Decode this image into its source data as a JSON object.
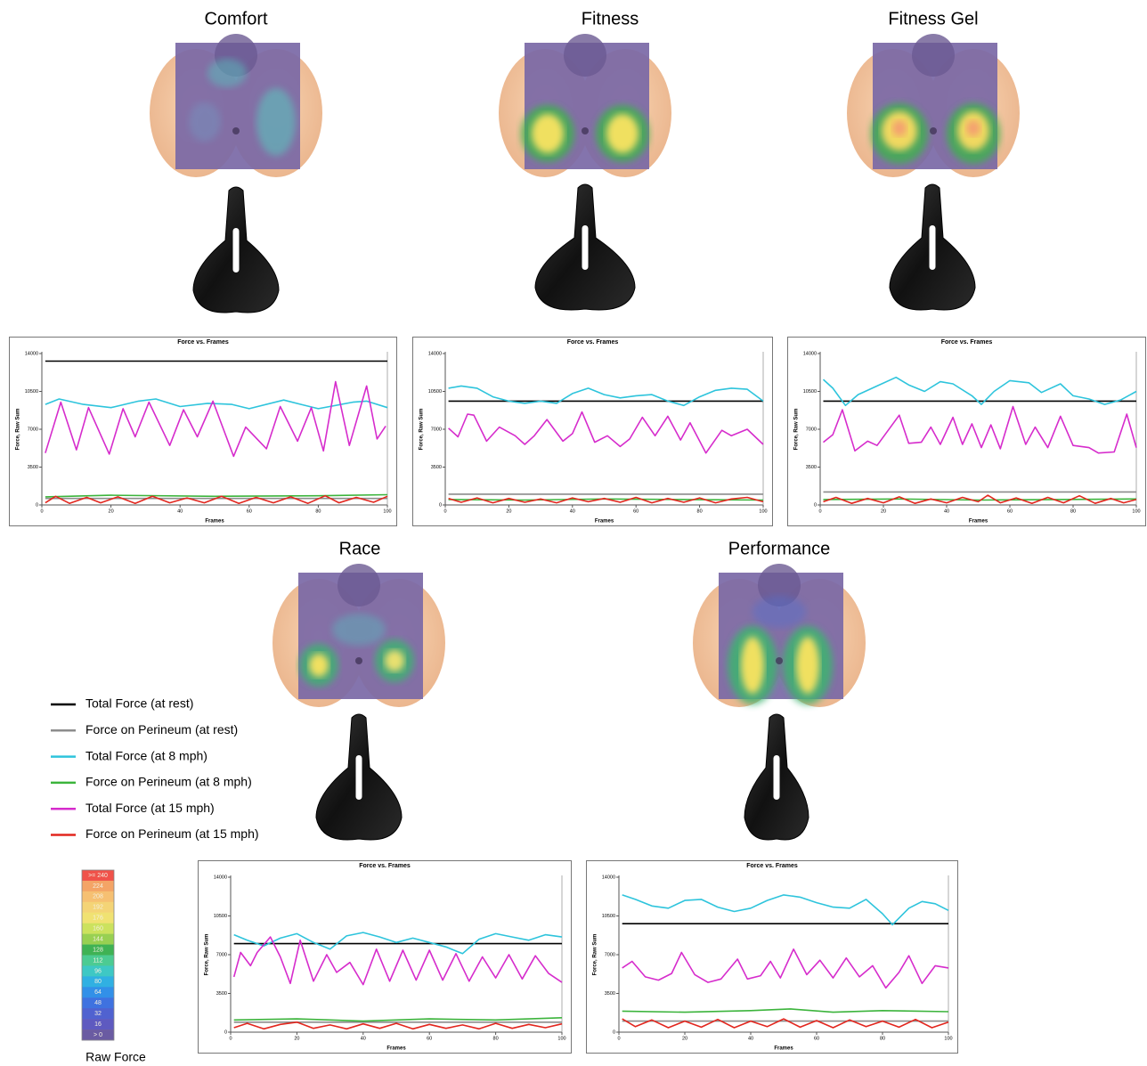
{
  "chart_data": [
    {
      "type": "line",
      "panel_title": "Comfort",
      "title": "Force vs. Frames",
      "xlabel": "Frames",
      "ylabel": "Force, Raw Sum",
      "xlim": [
        0,
        100
      ],
      "ylim": [
        0,
        14000
      ],
      "xticks": [
        0,
        20,
        40,
        60,
        80,
        100
      ],
      "yticks": [
        0,
        3500,
        7000,
        10500,
        14000
      ],
      "series": [
        {
          "x": [
            1,
            100
          ],
          "values": [
            13300,
            13300
          ]
        },
        {
          "x": [
            1,
            100
          ],
          "values": [
            600,
            600
          ]
        },
        {
          "x": [
            1,
            5,
            12,
            20,
            28,
            33,
            40,
            48,
            55,
            60,
            70,
            75,
            80,
            90,
            94,
            100
          ],
          "values": [
            9300,
            9800,
            9300,
            9000,
            9600,
            9800,
            9100,
            9400,
            9300,
            8900,
            9700,
            9300,
            8900,
            9500,
            9600,
            9000
          ]
        },
        {
          "x": [
            1,
            20,
            50,
            80,
            100
          ],
          "values": [
            750,
            900,
            800,
            850,
            950
          ]
        },
        {
          "x": [
            1,
            5.5,
            10,
            13.5,
            19.5,
            23.5,
            27,
            31,
            37,
            41,
            45,
            49.5,
            55.5,
            59,
            65,
            69,
            74,
            78,
            81.5,
            85,
            89,
            94,
            97,
            99.5
          ],
          "values": [
            4800,
            9500,
            5100,
            9000,
            4700,
            8900,
            6300,
            9500,
            5500,
            8800,
            6300,
            9600,
            4500,
            7200,
            5200,
            9100,
            5900,
            9000,
            5000,
            11400,
            5500,
            11000,
            6100,
            7300
          ]
        },
        {
          "x": [
            1,
            4,
            8,
            13,
            17,
            22,
            27,
            32,
            37,
            42,
            47,
            52,
            57,
            62,
            67,
            72,
            77,
            82,
            86,
            91,
            96,
            100
          ],
          "values": [
            200,
            800,
            150,
            700,
            200,
            750,
            150,
            800,
            200,
            650,
            200,
            800,
            150,
            700,
            200,
            750,
            150,
            850,
            200,
            700,
            250,
            800
          ]
        }
      ]
    },
    {
      "type": "line",
      "panel_title": "Fitness",
      "title": "Force vs. Frames",
      "xlabel": "Frames",
      "ylabel": "Force, Raw Sum",
      "xlim": [
        0,
        100
      ],
      "ylim": [
        0,
        14000
      ],
      "xticks": [
        0,
        20,
        40,
        60,
        80,
        100
      ],
      "yticks": [
        0,
        3500,
        7000,
        10500,
        14000
      ],
      "series": [
        {
          "x": [
            1,
            100
          ],
          "values": [
            9600,
            9600
          ]
        },
        {
          "x": [
            1,
            100
          ],
          "values": [
            1000,
            1000
          ]
        },
        {
          "x": [
            1,
            5,
            10,
            15,
            20,
            25,
            30,
            35,
            40,
            45,
            50,
            55,
            60,
            65,
            70,
            75,
            80,
            85,
            90,
            95,
            100
          ],
          "values": [
            10800,
            11000,
            10800,
            10000,
            9600,
            9400,
            9600,
            9400,
            10300,
            10800,
            10200,
            9900,
            10100,
            10200,
            9600,
            9200,
            10000,
            10600,
            10800,
            10700,
            9600
          ]
        },
        {
          "x": [
            1,
            25,
            50,
            75,
            100
          ],
          "values": [
            500,
            450,
            550,
            500,
            450
          ]
        },
        {
          "x": [
            1,
            4,
            7,
            9,
            13,
            17,
            22,
            25,
            28,
            32,
            37,
            40,
            43,
            47,
            51,
            55,
            58,
            62,
            66,
            70,
            74,
            77,
            82,
            87,
            90,
            95,
            100
          ],
          "values": [
            7100,
            6300,
            8400,
            8300,
            5900,
            7200,
            6400,
            5600,
            6400,
            7900,
            5900,
            6600,
            8600,
            5800,
            6400,
            5400,
            6100,
            8100,
            6400,
            8200,
            6000,
            7600,
            4800,
            6900,
            6400,
            7000,
            5600
          ]
        },
        {
          "x": [
            1,
            5,
            10,
            15,
            20,
            25,
            30,
            35,
            40,
            45,
            50,
            55,
            60,
            65,
            70,
            75,
            80,
            85,
            90,
            95,
            100
          ],
          "values": [
            600,
            250,
            650,
            200,
            600,
            250,
            550,
            200,
            650,
            300,
            600,
            250,
            700,
            200,
            600,
            250,
            650,
            200,
            550,
            700,
            300
          ]
        }
      ]
    },
    {
      "type": "line",
      "panel_title": "Fitness Gel",
      "title": "Force vs. Frames",
      "xlabel": "Frames",
      "ylabel": "Force, Raw Sum",
      "xlim": [
        0,
        100
      ],
      "ylim": [
        0,
        14000
      ],
      "xticks": [
        0,
        20,
        40,
        60,
        80,
        100
      ],
      "yticks": [
        0,
        3500,
        7000,
        10500,
        14000
      ],
      "series": [
        {
          "x": [
            1,
            100
          ],
          "values": [
            9600,
            9600
          ]
        },
        {
          "x": [
            1,
            100
          ],
          "values": [
            1200,
            1200
          ]
        },
        {
          "x": [
            1,
            4,
            8,
            12,
            18,
            24,
            28,
            33,
            38,
            42,
            48,
            51,
            55,
            60,
            66,
            70,
            76,
            80,
            85,
            90,
            95,
            100
          ],
          "values": [
            11600,
            10800,
            9200,
            10200,
            11000,
            11800,
            11100,
            10500,
            11400,
            11200,
            10100,
            9300,
            10500,
            11500,
            11300,
            10400,
            11200,
            10100,
            9800,
            9300,
            9700,
            10500
          ]
        },
        {
          "x": [
            1,
            25,
            50,
            75,
            100
          ],
          "values": [
            500,
            550,
            450,
            500,
            550
          ]
        },
        {
          "x": [
            1,
            4,
            7,
            11,
            15,
            18,
            22,
            25,
            28,
            32,
            35,
            38,
            42,
            45,
            48,
            51,
            54,
            57,
            61,
            65,
            68,
            72,
            76,
            80,
            85,
            88,
            93,
            97,
            100
          ],
          "values": [
            5800,
            6500,
            8800,
            5000,
            5900,
            5500,
            7100,
            8300,
            5700,
            5800,
            7200,
            5600,
            8100,
            5600,
            7500,
            5300,
            7400,
            5200,
            9100,
            5600,
            7200,
            5300,
            8200,
            5500,
            5300,
            4800,
            4900,
            8400,
            5300
          ]
        },
        {
          "x": [
            1,
            5,
            10,
            15,
            20,
            25,
            30,
            35,
            40,
            45,
            50,
            53,
            57,
            62,
            67,
            72,
            77,
            82,
            87,
            92,
            96,
            100
          ],
          "values": [
            300,
            700,
            150,
            600,
            200,
            750,
            150,
            550,
            200,
            700,
            300,
            900,
            200,
            650,
            150,
            700,
            200,
            850,
            150,
            600,
            200,
            500
          ]
        }
      ]
    },
    {
      "type": "line",
      "panel_title": "Race",
      "title": "Force vs. Frames",
      "xlabel": "Frames",
      "ylabel": "Force, Raw Sum",
      "xlim": [
        0,
        100
      ],
      "ylim": [
        0,
        14000
      ],
      "xticks": [
        0,
        20,
        40,
        60,
        80,
        100
      ],
      "yticks": [
        0,
        3500,
        7000,
        10500,
        14000
      ],
      "series": [
        {
          "x": [
            1,
            100
          ],
          "values": [
            8000,
            8000
          ]
        },
        {
          "x": [
            1,
            100
          ],
          "values": [
            900,
            900
          ]
        },
        {
          "x": [
            1,
            5,
            10,
            15,
            20,
            25,
            30,
            35,
            40,
            45,
            50,
            55,
            60,
            65,
            70,
            75,
            80,
            85,
            90,
            95,
            100
          ],
          "values": [
            8800,
            8300,
            7800,
            8500,
            8900,
            8100,
            7500,
            8700,
            9000,
            8600,
            8100,
            8500,
            8100,
            7700,
            7100,
            8400,
            8900,
            8600,
            8300,
            8800,
            8600
          ]
        },
        {
          "x": [
            1,
            20,
            40,
            60,
            80,
            100
          ],
          "values": [
            1100,
            1200,
            1000,
            1200,
            1100,
            1300
          ]
        },
        {
          "x": [
            1,
            3,
            6,
            8,
            12,
            15,
            18,
            21,
            25,
            29,
            32,
            36,
            40,
            44,
            48,
            52,
            56,
            60,
            64,
            68,
            72,
            76,
            80,
            84,
            88,
            92,
            96,
            100
          ],
          "values": [
            5000,
            7200,
            6000,
            7200,
            8600,
            6800,
            4400,
            8300,
            4600,
            7000,
            5400,
            6300,
            4300,
            7500,
            4600,
            7400,
            4700,
            7400,
            4700,
            7100,
            4600,
            6800,
            4900,
            7000,
            4800,
            6900,
            5300,
            4500
          ]
        },
        {
          "x": [
            1,
            5,
            10,
            15,
            20,
            25,
            30,
            35,
            40,
            45,
            50,
            55,
            60,
            65,
            70,
            75,
            80,
            85,
            90,
            95,
            100
          ],
          "values": [
            400,
            800,
            300,
            700,
            900,
            350,
            650,
            300,
            750,
            350,
            800,
            300,
            700,
            350,
            650,
            300,
            800,
            350,
            700,
            400,
            750
          ]
        }
      ]
    },
    {
      "type": "line",
      "panel_title": "Performance",
      "title": "Force vs. Frames",
      "xlabel": "Frames",
      "ylabel": "Force, Raw Sum",
      "xlim": [
        0,
        100
      ],
      "ylim": [
        0,
        14000
      ],
      "xticks": [
        0,
        20,
        40,
        60,
        80,
        100
      ],
      "yticks": [
        0,
        3500,
        7000,
        10500,
        14000
      ],
      "series": [
        {
          "x": [
            1,
            100
          ],
          "values": [
            9800,
            9800
          ]
        },
        {
          "x": [
            1,
            100
          ],
          "values": [
            1000,
            1000
          ]
        },
        {
          "x": [
            1,
            5,
            10,
            15,
            20,
            25,
            30,
            35,
            40,
            45,
            50,
            55,
            60,
            65,
            70,
            75,
            80,
            83,
            88,
            92,
            96,
            100
          ],
          "values": [
            12400,
            12000,
            11400,
            11200,
            11900,
            12000,
            11300,
            10900,
            11200,
            11900,
            12400,
            12200,
            11700,
            11300,
            11200,
            12000,
            10700,
            9700,
            11200,
            11800,
            11600,
            11000
          ]
        },
        {
          "x": [
            1,
            20,
            40,
            52,
            65,
            80,
            100
          ],
          "values": [
            1900,
            1800,
            1950,
            2100,
            1800,
            1950,
            1850
          ]
        },
        {
          "x": [
            1,
            4,
            8,
            12,
            16,
            19,
            23,
            27,
            31,
            36,
            39,
            43,
            46,
            49,
            53,
            57,
            61,
            65,
            69,
            73,
            77,
            81,
            85,
            88,
            92,
            96,
            100
          ],
          "values": [
            5800,
            6400,
            5000,
            4700,
            5300,
            7200,
            5200,
            4500,
            4800,
            6600,
            4800,
            5100,
            6400,
            4900,
            7500,
            5200,
            6500,
            4900,
            6700,
            5000,
            6000,
            4000,
            5400,
            6900,
            4400,
            6000,
            5800
          ]
        },
        {
          "x": [
            1,
            5,
            10,
            15,
            20,
            25,
            30,
            35,
            40,
            45,
            50,
            55,
            60,
            65,
            70,
            75,
            80,
            85,
            90,
            95,
            100
          ],
          "values": [
            1200,
            500,
            1100,
            400,
            1000,
            450,
            1150,
            400,
            1000,
            500,
            1200,
            450,
            1050,
            400,
            1100,
            500,
            1000,
            450,
            1150,
            400,
            900
          ]
        }
      ]
    }
  ],
  "legend": [
    {
      "name": "Total Force (at rest)",
      "color": "#000000"
    },
    {
      "name": "Force on Perineum (at rest)",
      "color": "#8c8c8c"
    },
    {
      "name": "Total Force (at 8 mph)",
      "color": "#2ec4dc"
    },
    {
      "name": "Force on Perineum (at 8 mph)",
      "color": "#3cb43c"
    },
    {
      "name": "Total Force (at 15 mph)",
      "color": "#d62ccc"
    },
    {
      "name": "Force on Perineum (at 15 mph)",
      "color": "#e2261e"
    }
  ],
  "colorbar": {
    "title": "Raw Force",
    "ticks": [
      {
        "value": 240,
        "label": ">= 240"
      },
      224,
      208,
      192,
      176,
      160,
      144,
      128,
      112,
      96,
      80,
      64,
      48,
      32,
      16,
      {
        "value": 0,
        "label": "> 0"
      }
    ],
    "colors": [
      "#f0524a",
      "#f4a466",
      "#f6c072",
      "#f4d476",
      "#f0e272",
      "#cce25e",
      "#98d052",
      "#3fb254",
      "#4ccb92",
      "#3ec8c4",
      "#30b0e2",
      "#3290e8",
      "#3f72e0",
      "#5062d0",
      "#5e5ac0",
      "#6a5ba2"
    ]
  }
}
